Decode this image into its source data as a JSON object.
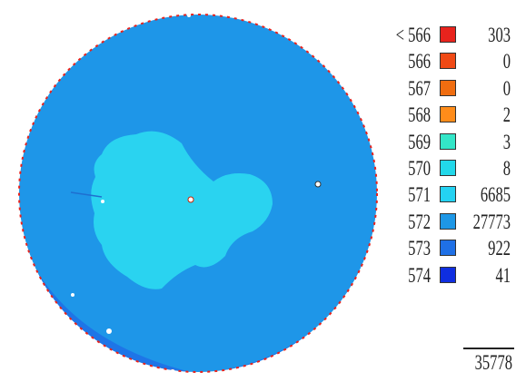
{
  "chart_data": {
    "type": "heatmap",
    "title": "",
    "legend": [
      {
        "label": "< 566",
        "count": "303",
        "color": "#e8231d"
      },
      {
        "label": "566",
        "count": "0",
        "color": "#f04a16"
      },
      {
        "label": "567",
        "count": "0",
        "color": "#f06d10"
      },
      {
        "label": "568",
        "count": "2",
        "color": "#ff8c1a"
      },
      {
        "label": "569",
        "count": "3",
        "color": "#33e6c8"
      },
      {
        "label": "570",
        "count": "8",
        "color": "#22d8ea"
      },
      {
        "label": "571",
        "count": "6685",
        "color": "#24d2f2"
      },
      {
        "label": "572",
        "count": "27773",
        "color": "#1d97e6"
      },
      {
        "label": "573",
        "count": "922",
        "color": "#1f70e6"
      },
      {
        "label": "574",
        "count": "41",
        "color": "#0f2ee0"
      }
    ],
    "total": "35778",
    "regions": {
      "wafer_fill_color": "#1e96e8",
      "center_patch_color": "#2ad3f0",
      "edge_defect_color": "#e8231d",
      "lower_rim_color": "#1f70e6"
    }
  }
}
